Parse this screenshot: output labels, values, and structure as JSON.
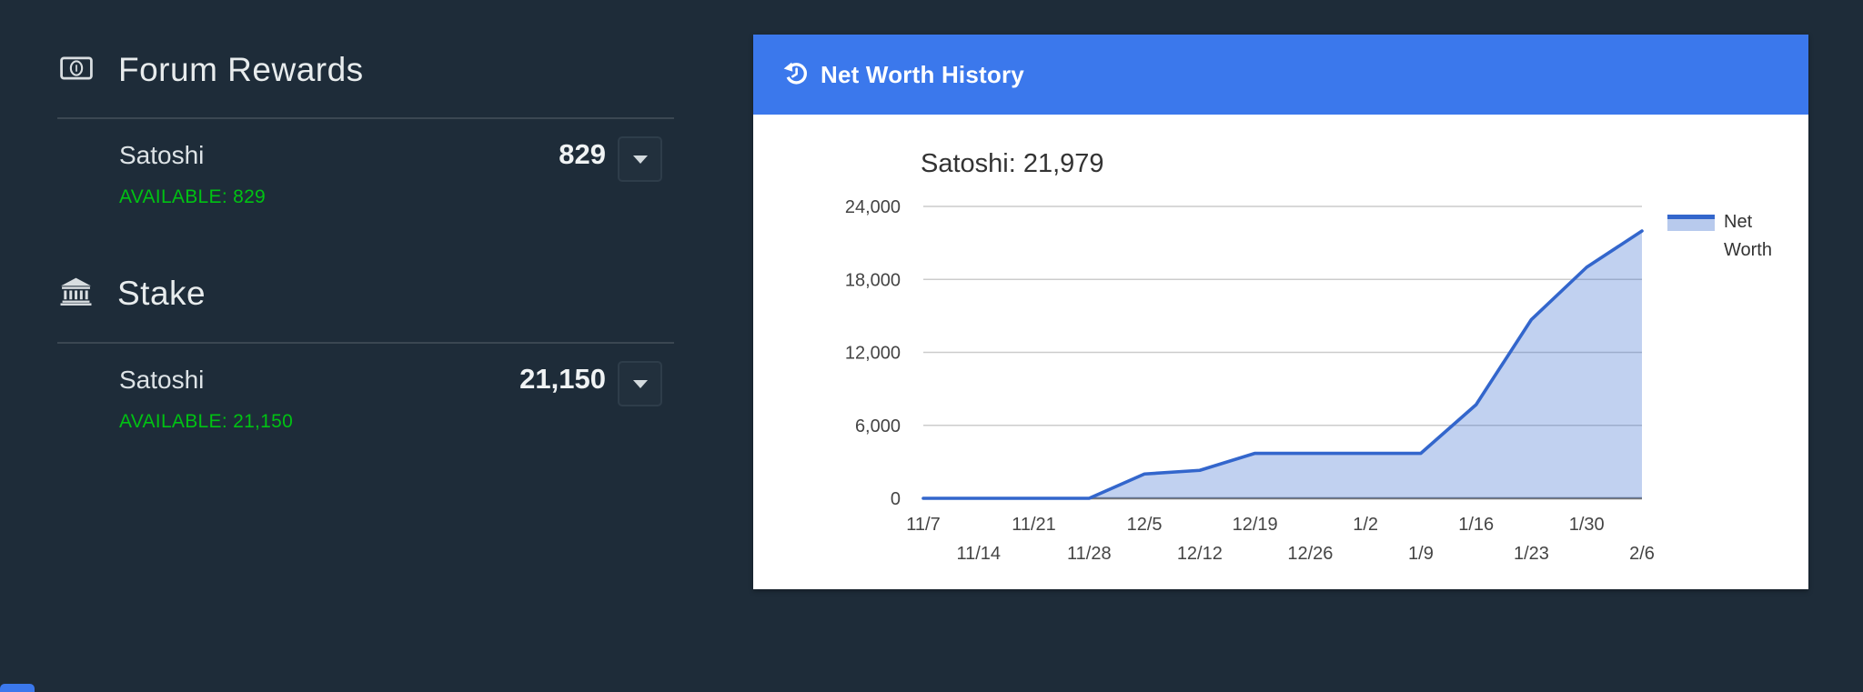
{
  "wallet": {
    "sections": [
      {
        "icon": "money-bill-icon",
        "title": "Forum Rewards",
        "currency": "Satoshi",
        "amount": "829",
        "available": "AVAILABLE: 829"
      },
      {
        "icon": "bank-icon",
        "title": "Stake",
        "currency": "Satoshi",
        "amount": "21,150",
        "available": "AVAILABLE: 21,150"
      }
    ]
  },
  "panel": {
    "icon": "history-icon",
    "title": "Net Worth History",
    "header_color": "#3b78ec"
  },
  "icons": {
    "dropdown": "caret-down-icon"
  },
  "colors": {
    "background": "#1e2c39",
    "available_green": "#00c213",
    "line_blue": "#3366cc",
    "header_blue": "#3b78ec"
  },
  "chart_data": {
    "type": "area",
    "title": "Satoshi: 21,979",
    "x": [
      "11/7",
      "11/14",
      "11/21",
      "11/28",
      "12/5",
      "12/12",
      "12/19",
      "12/26",
      "1/2",
      "1/9",
      "1/16",
      "1/23",
      "1/30",
      "2/6"
    ],
    "series": [
      {
        "name": "Net Worth",
        "values": [
          0,
          0,
          0,
          0,
          2000,
          2300,
          3700,
          3700,
          3700,
          3700,
          7700,
          14700,
          19000,
          21979
        ]
      }
    ],
    "xlabel": "",
    "ylabel": "",
    "ylim": [
      0,
      24000
    ],
    "yticks": [
      0,
      6000,
      12000,
      18000,
      24000
    ],
    "ytick_labels": [
      "0",
      "6,000",
      "12,000",
      "18,000",
      "24,000"
    ],
    "grid": true,
    "legend_position": "right",
    "line_color": "#3366cc",
    "fill_opacity": 0.3
  }
}
